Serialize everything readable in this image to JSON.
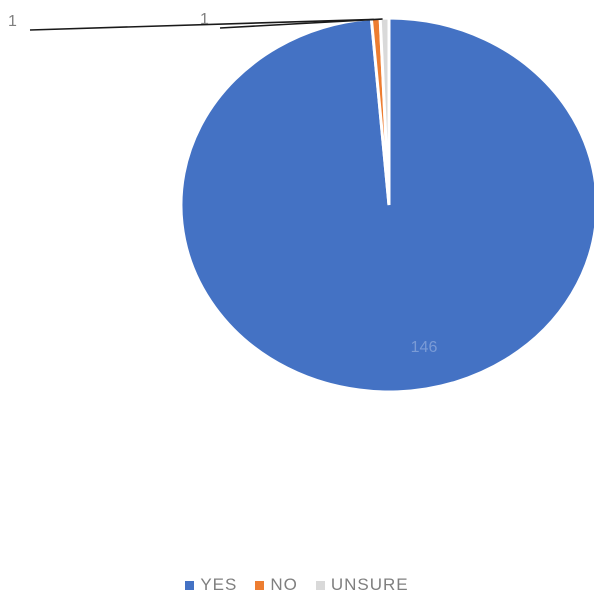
{
  "chart_data": {
    "type": "pie",
    "title": "",
    "categories": [
      "YES",
      "NO",
      "UNSURE"
    ],
    "values": [
      146,
      1,
      1
    ],
    "data_labels": [
      "146",
      "1",
      "1"
    ],
    "colors": [
      "#4472c4",
      "#ed7d31",
      "#d9d9d9"
    ],
    "legend": "bottom",
    "legend_labels": [
      "YES",
      "NO",
      "UNSURE"
    ]
  }
}
